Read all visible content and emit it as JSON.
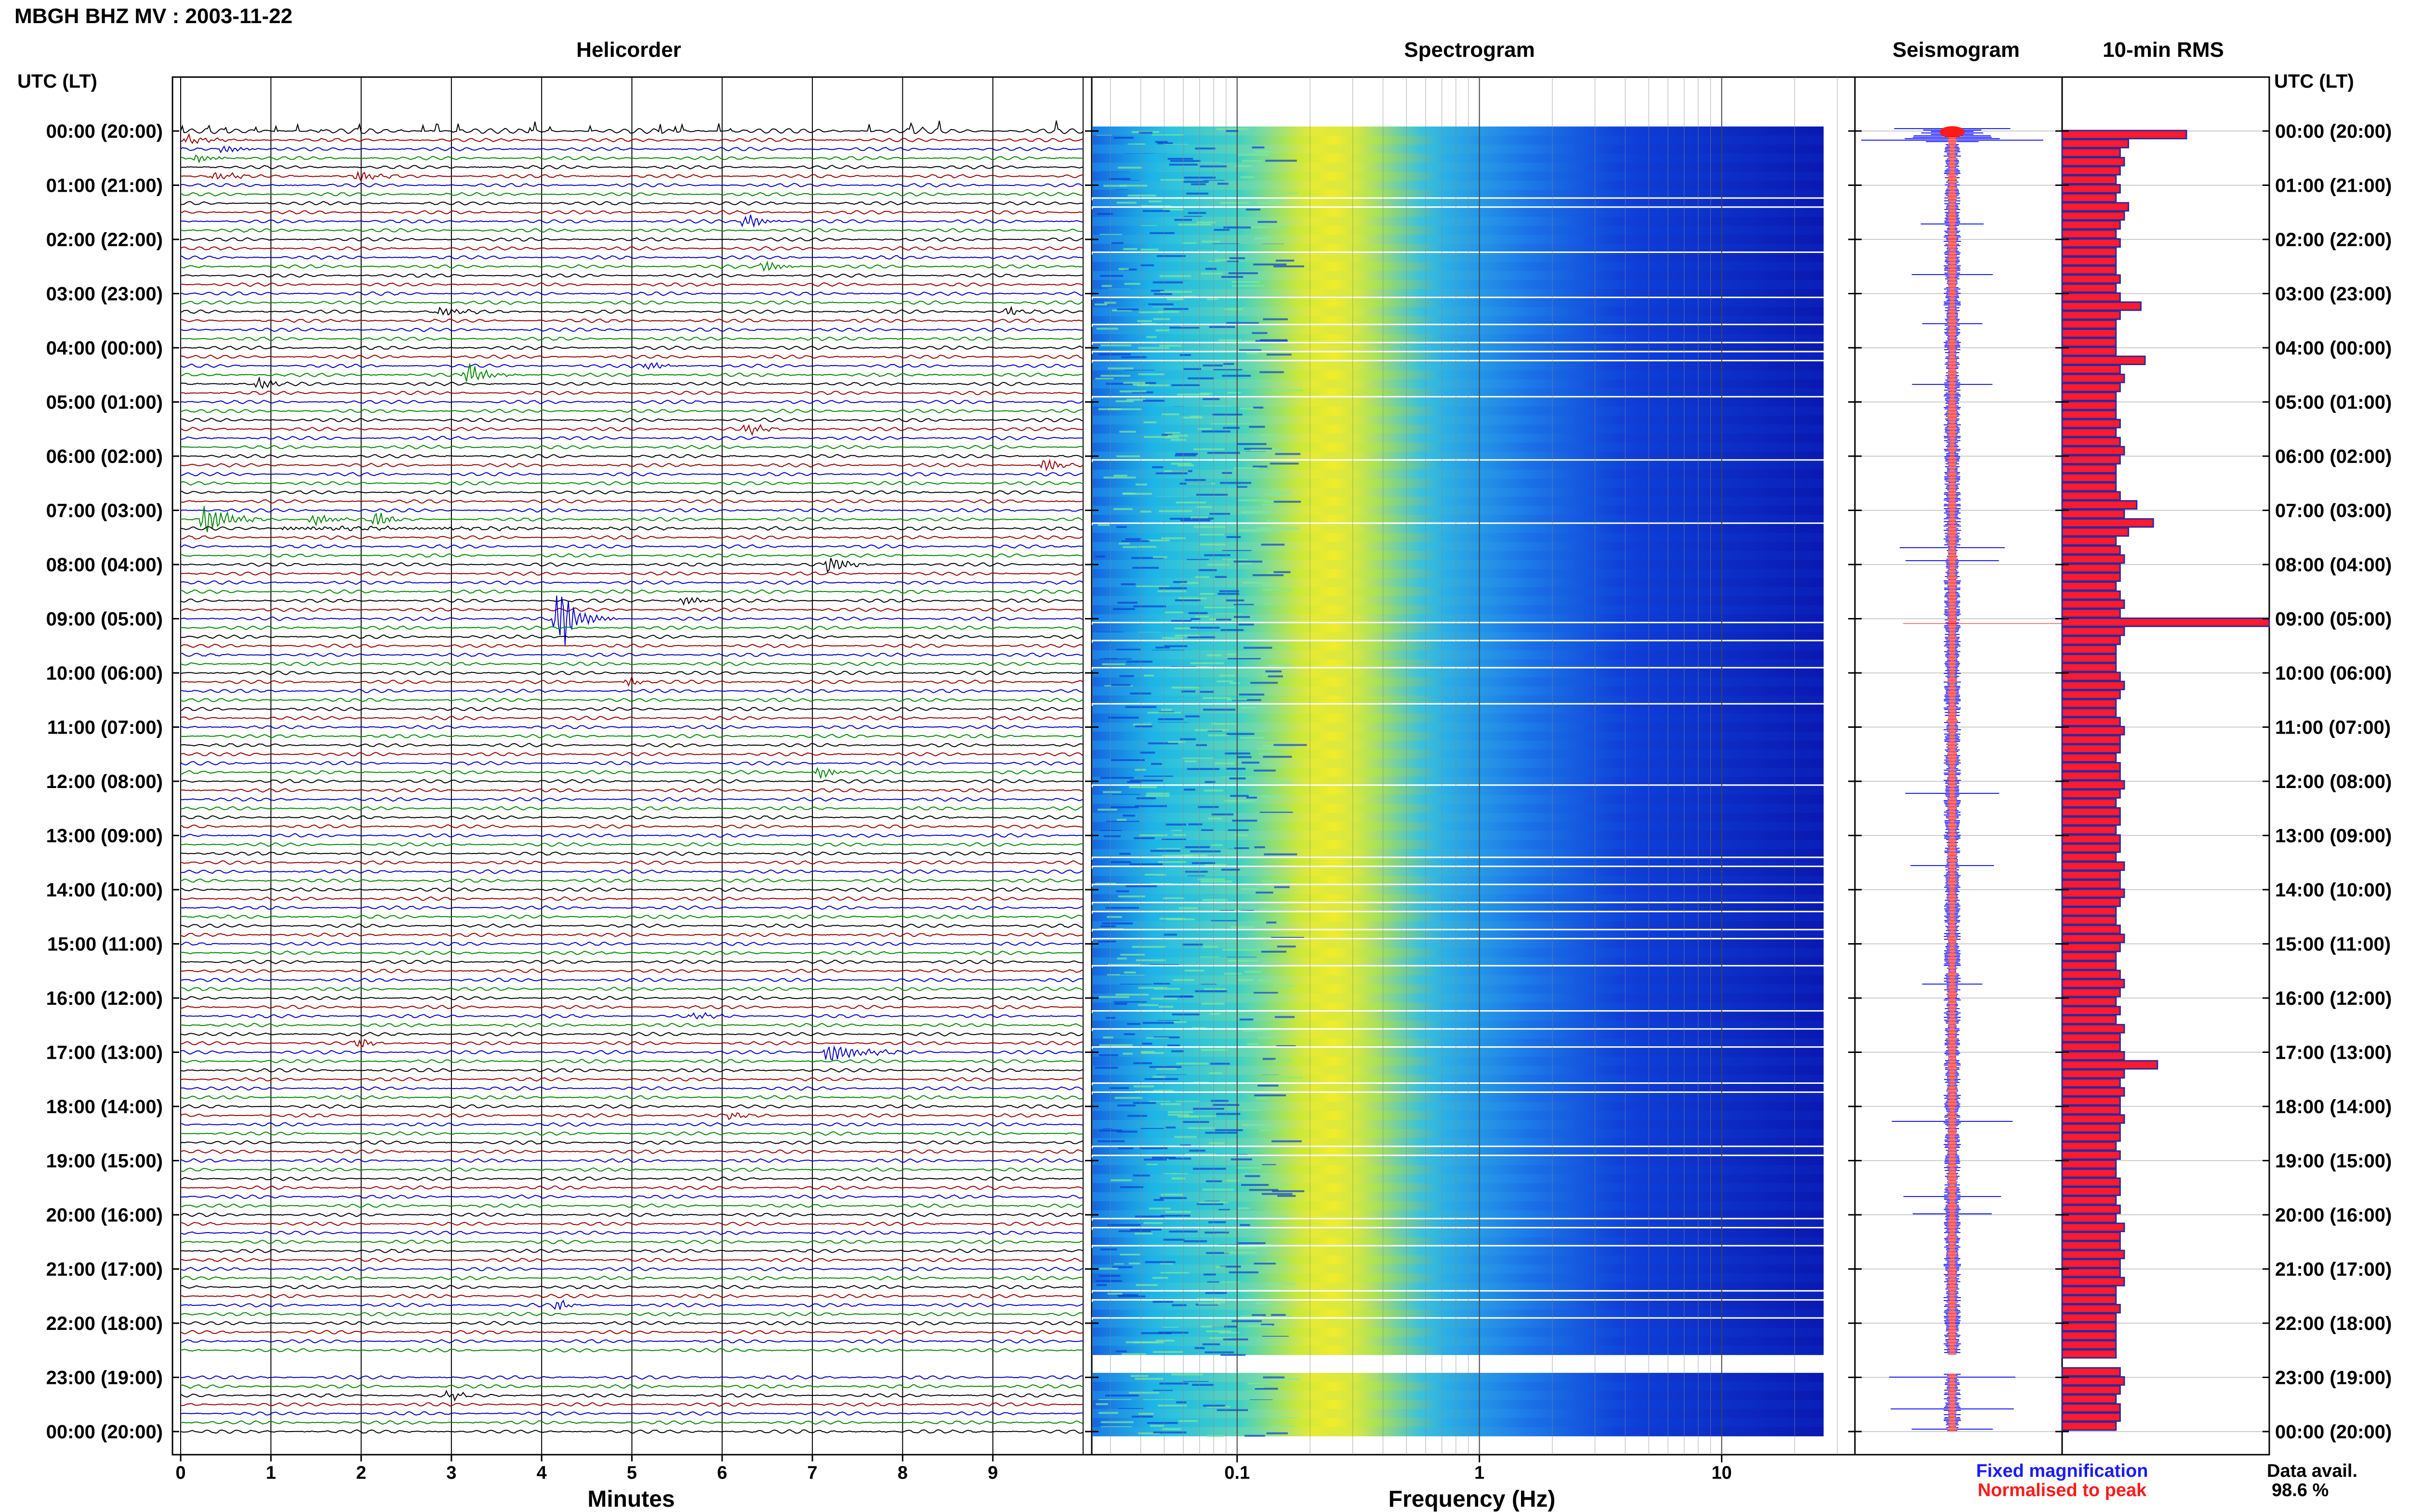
{
  "figure_title": "MBGH BHZ MV : 2003-11-22",
  "left_axis_header": "UTC (LT)",
  "right_axis_header": "UTC (LT)",
  "panels": {
    "helicorder": {
      "title": "Helicorder",
      "xlabel": "Minutes",
      "ticks": [
        "0",
        "1",
        "2",
        "3",
        "4",
        "5",
        "6",
        "7",
        "8",
        "9"
      ]
    },
    "spectrogram": {
      "title": "Spectrogram",
      "xlabel": "Frequency (Hz)",
      "ticks": [
        "0.1",
        "1",
        "10"
      ]
    },
    "seismogram": {
      "title": "Seismogram"
    },
    "rms": {
      "title": "10-min RMS"
    }
  },
  "time_labels": [
    "00:00 (20:00)",
    "01:00 (21:00)",
    "02:00 (22:00)",
    "03:00 (23:00)",
    "04:00 (00:00)",
    "05:00 (01:00)",
    "06:00 (02:00)",
    "07:00 (03:00)",
    "08:00 (04:00)",
    "09:00 (05:00)",
    "10:00 (06:00)",
    "11:00 (07:00)",
    "12:00 (08:00)",
    "13:00 (09:00)",
    "14:00 (10:00)",
    "15:00 (11:00)",
    "16:00 (12:00)",
    "17:00 (13:00)",
    "18:00 (14:00)",
    "19:00 (15:00)",
    "20:00 (16:00)",
    "21:00 (17:00)",
    "22:00 (18:00)",
    "23:00 (19:00)",
    "00:00 (20:00)"
  ],
  "legend": {
    "fixed": "Fixed magnification",
    "fixed_color": "#1a1aff",
    "normalised": "Normalised to peak",
    "normalised_color": "#ff1a1a"
  },
  "data_availability": {
    "label": "Data avail.",
    "value": "98.6 %"
  },
  "colors": {
    "trace_cycle": [
      "#000000",
      "#990000",
      "#0000cc",
      "#008800"
    ],
    "rms_fill": "#ff1a2e",
    "rms_edge": "#2a2aa0"
  },
  "chart_data": {
    "type": "bar",
    "title": "10-min RMS",
    "interval_minutes": 10,
    "values": [
      3.0,
      1.6,
      1.4,
      1.5,
      1.4,
      1.3,
      1.4,
      1.3,
      1.6,
      1.5,
      1.4,
      1.3,
      1.4,
      1.3,
      1.3,
      1.3,
      1.4,
      1.3,
      1.4,
      1.9,
      1.4,
      1.3,
      1.3,
      1.3,
      1.3,
      2.0,
      1.4,
      1.5,
      1.4,
      1.3,
      1.3,
      1.3,
      1.4,
      1.3,
      1.4,
      1.5,
      1.4,
      1.3,
      1.3,
      1.3,
      1.4,
      1.8,
      1.5,
      2.2,
      1.6,
      1.3,
      1.4,
      1.5,
      1.4,
      1.4,
      1.3,
      1.4,
      1.5,
      1.4,
      5.0,
      1.5,
      1.4,
      1.3,
      1.3,
      1.3,
      1.4,
      1.5,
      1.4,
      1.3,
      1.3,
      1.4,
      1.5,
      1.4,
      1.4,
      1.3,
      1.4,
      1.4,
      1.5,
      1.4,
      1.3,
      1.4,
      1.4,
      1.3,
      1.4,
      1.4,
      1.3,
      1.5,
      1.4,
      1.4,
      1.5,
      1.4,
      1.3,
      1.3,
      1.4,
      1.5,
      1.4,
      1.3,
      1.3,
      1.4,
      1.5,
      1.4,
      1.3,
      1.4,
      1.3,
      1.5,
      1.4,
      1.4,
      1.5,
      2.3,
      1.5,
      1.4,
      1.5,
      1.4,
      1.4,
      1.5,
      1.4,
      1.4,
      1.3,
      1.4,
      1.3,
      1.3,
      1.4,
      1.4,
      1.3,
      1.4,
      1.3,
      1.5,
      1.4,
      1.4,
      1.5,
      1.4,
      1.4,
      1.5,
      1.3,
      1.3,
      1.4,
      1.3,
      1.3,
      1.3,
      1.3,
      1.3,
      null,
      1.4,
      1.5,
      1.4,
      1.3,
      1.4,
      1.4,
      1.3
    ]
  }
}
